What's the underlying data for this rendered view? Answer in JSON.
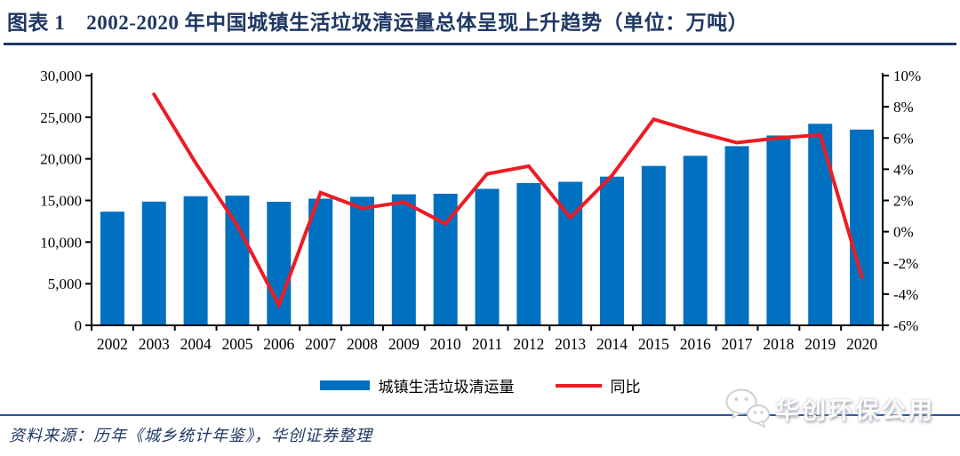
{
  "header": {
    "label": "图表 1",
    "title": "2002-2020 年中国城镇生活垃圾清运量总体呈现上升趋势（单位：万吨）"
  },
  "chart_data": {
    "type": "bar+line",
    "categories": [
      "2002",
      "2003",
      "2004",
      "2005",
      "2006",
      "2007",
      "2008",
      "2009",
      "2010",
      "2011",
      "2012",
      "2013",
      "2014",
      "2015",
      "2016",
      "2017",
      "2018",
      "2019",
      "2020"
    ],
    "series": [
      {
        "name": "城镇生活垃圾清运量",
        "type": "bar",
        "axis": "left",
        "values": [
          13650,
          14857,
          15509,
          15577,
          14841,
          15215,
          15438,
          15734,
          15805,
          16395,
          17081,
          17239,
          17860,
          19142,
          20362,
          21521,
          22802,
          24206,
          23512
        ]
      },
      {
        "name": "同比",
        "type": "line",
        "axis": "right",
        "values": [
          null,
          8.8,
          4.4,
          0.4,
          -4.7,
          2.5,
          1.5,
          1.9,
          0.5,
          3.7,
          4.2,
          0.9,
          3.6,
          7.2,
          6.4,
          5.7,
          6.0,
          6.2,
          -2.9
        ]
      }
    ],
    "left_axis": {
      "min": 0,
      "max": 30000,
      "step": 5000,
      "tick_labels": [
        "0",
        "5,000",
        "10,000",
        "15,000",
        "20,000",
        "25,000",
        "30,000"
      ]
    },
    "right_axis": {
      "min": -6,
      "max": 10,
      "step": 2,
      "tick_labels": [
        "-6%",
        "-4%",
        "-2%",
        "0%",
        "2%",
        "4%",
        "6%",
        "8%",
        "10%"
      ]
    },
    "grid": false,
    "legend_position": "bottom"
  },
  "legend": {
    "bar_label": "城镇生活垃圾清运量",
    "line_label": "同比"
  },
  "footer": {
    "source": "资料来源：历年《城乡统计年鉴》，华创证券整理",
    "watermark": "华创环保公用",
    "watermark_icon": "wechat-icon"
  },
  "colors": {
    "bar": "#0070c0",
    "line": "#ec1c24",
    "navy": "#1f3864",
    "divider": "#2e5596",
    "axis": "#000000"
  }
}
